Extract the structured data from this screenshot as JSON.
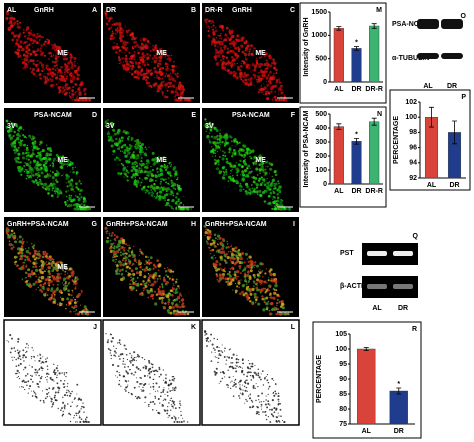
{
  "panels": [
    {
      "style": "red",
      "left": "AL",
      "stain": "GnRH",
      "letter": "A",
      "region": "ME"
    },
    {
      "style": "red",
      "left": "DR",
      "letter": "B",
      "region": "ME"
    },
    {
      "style": "red",
      "left": "DR-R",
      "stain": "GnRH",
      "letter": "C",
      "region": "ME"
    },
    {
      "style": "green",
      "left": "3V",
      "stain": "PSA-NCAM",
      "letter": "D",
      "region": "ME"
    },
    {
      "style": "green",
      "left": "3V",
      "letter": "E",
      "region": "ME"
    },
    {
      "style": "green",
      "left": "3V",
      "stain": "PSA-NCAM",
      "letter": "F",
      "region": "ME"
    },
    {
      "style": "merge",
      "stain": "GnRH+PSA-NCAM",
      "letter": "G",
      "region": "ME"
    },
    {
      "style": "merge",
      "stain": "GnRH+PSA-NCAM",
      "letter": "H"
    },
    {
      "style": "merge",
      "stain": "GnRH+PSA-NCAM",
      "letter": "I"
    },
    {
      "style": "dots",
      "letter": "J"
    },
    {
      "style": "dots",
      "letter": "K"
    },
    {
      "style": "dots",
      "letter": "L"
    }
  ],
  "blot": {
    "letter": "O",
    "bands": [
      "PSA-NCAM",
      "α-TUBULIN"
    ],
    "lanes": [
      "AL",
      "DR"
    ]
  },
  "gel": {
    "letter": "Q",
    "bands": [
      "PST",
      "β-ACTIN"
    ],
    "lanes": [
      "AL",
      "DR"
    ]
  },
  "chart_data": [
    {
      "type": "bar",
      "letter": "M",
      "y_label": "Intensity of GnRH",
      "categories": [
        "AL",
        "DR",
        "DR-R"
      ],
      "values": [
        1150,
        720,
        1200
      ],
      "errors": [
        40,
        40,
        50
      ],
      "colors": [
        "#d9433a",
        "#1f3d8c",
        "#3cb371"
      ],
      "markers": [
        null,
        "*",
        null
      ],
      "ylim": [
        0,
        1500
      ],
      "yticks": [
        0,
        500,
        1000,
        1500
      ]
    },
    {
      "type": "bar",
      "letter": "N",
      "y_label": "Intensity of PSA-NCAM",
      "categories": [
        "AL",
        "DR",
        "DR-R"
      ],
      "values": [
        410,
        305,
        445
      ],
      "errors": [
        20,
        20,
        25
      ],
      "colors": [
        "#d9433a",
        "#1f3d8c",
        "#3cb371"
      ],
      "markers": [
        null,
        "*",
        null
      ],
      "ylim": [
        0,
        500
      ],
      "yticks": [
        0,
        100,
        200,
        300,
        400,
        500
      ]
    },
    {
      "type": "bar",
      "letter": "P",
      "y_label": "PERCENTAGE",
      "categories": [
        "AL",
        "DR"
      ],
      "values": [
        100,
        98
      ],
      "errors": [
        1.3,
        1.5
      ],
      "colors": [
        "#d9433a",
        "#1f3d8c"
      ],
      "markers": [
        null,
        null
      ],
      "ylim": [
        92,
        102
      ],
      "yticks": [
        92,
        94,
        96,
        98,
        100,
        102
      ]
    },
    {
      "type": "bar",
      "letter": "R",
      "y_label": "PERCENTAGE",
      "categories": [
        "AL",
        "DR"
      ],
      "values": [
        100,
        86
      ],
      "errors": [
        0.5,
        1
      ],
      "colors": [
        "#d9433a",
        "#1f3d8c"
      ],
      "markers": [
        null,
        "*"
      ],
      "ylim": [
        75,
        105
      ],
      "yticks": [
        75,
        80,
        85,
        90,
        95,
        100,
        105
      ]
    }
  ]
}
